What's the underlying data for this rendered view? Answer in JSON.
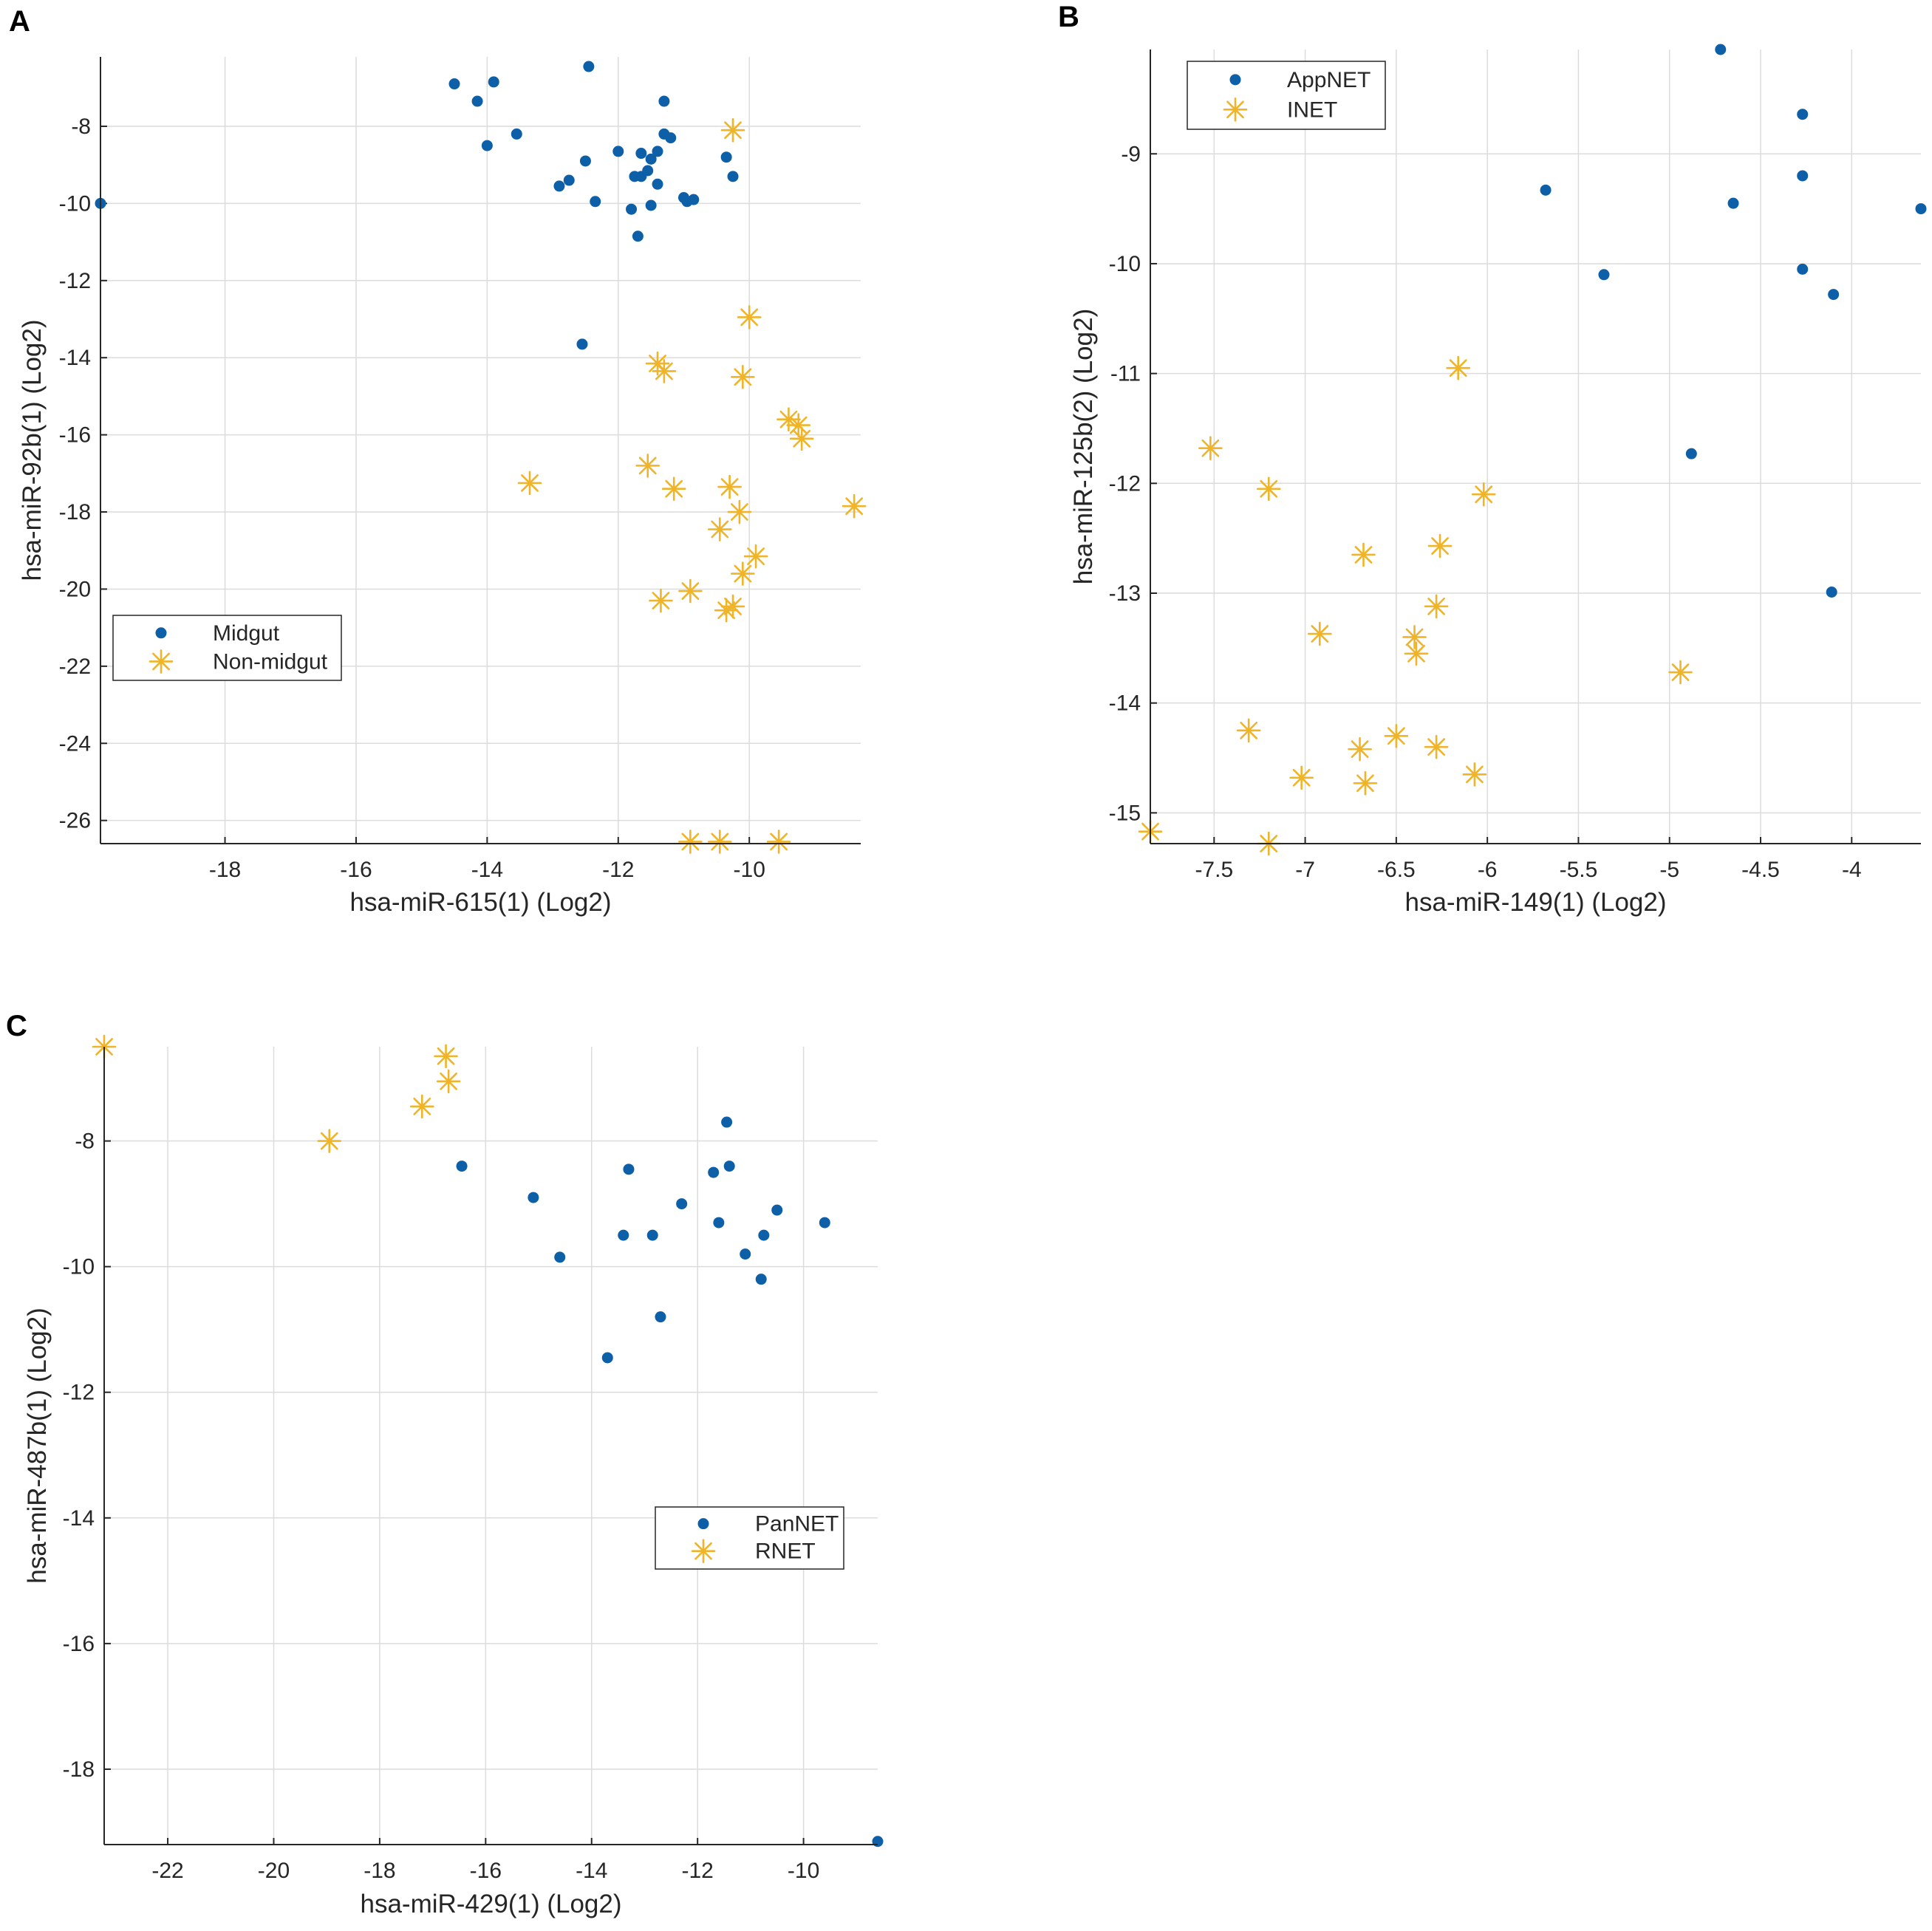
{
  "figure": {
    "colors": {
      "series_a": "#0d5fa8",
      "series_b": "#f0b428",
      "grid": "#dcdcdc",
      "axis": "#262626"
    }
  },
  "chart_data": [
    {
      "panel": "A",
      "type": "scatter",
      "xlabel": "hsa-miR-615(1)  (Log2)",
      "ylabel": "hsa-miR-92b(1)  (Log2)",
      "xlim": [
        -19.9,
        -8.3
      ],
      "ylim": [
        -26.6,
        -6.2
      ],
      "xticks": [
        -18,
        -16,
        -14,
        -12,
        -10
      ],
      "xtick_labels": [
        "-18",
        "-16",
        "-14",
        "-12",
        "-10"
      ],
      "yticks": [
        -26,
        -24,
        -22,
        -20,
        -18,
        -16,
        -14,
        -12,
        -10,
        -8
      ],
      "ytick_labels": [
        "-26",
        "-24",
        "-22",
        "-20",
        "-18",
        "-16",
        "-14",
        "-12",
        "-10",
        "-8"
      ],
      "legend_position": "lower-left",
      "series": [
        {
          "name": "Midgut",
          "marker": "dot",
          "x": [
            -19.9,
            -14.5,
            -14.15,
            -13.9,
            -14.0,
            -13.55,
            -12.45,
            -12.5,
            -12.0,
            -12.35,
            -12.9,
            -12.75,
            -11.65,
            -11.75,
            -11.65,
            -11.55,
            -11.5,
            -11.3,
            -11.3,
            -11.2,
            -11.4,
            -11.8,
            -11.5,
            -11.4,
            -11.7,
            -11.0,
            -10.95,
            -10.85,
            -10.35,
            -10.25,
            -12.55
          ],
          "y": [
            -10.0,
            -6.9,
            -7.35,
            -6.85,
            -8.5,
            -8.2,
            -6.45,
            -8.9,
            -8.65,
            -9.95,
            -9.55,
            -9.4,
            -8.7,
            -9.3,
            -9.3,
            -9.15,
            -8.85,
            -7.35,
            -8.2,
            -8.3,
            -9.5,
            -10.15,
            -10.05,
            -8.65,
            -10.85,
            -9.85,
            -9.95,
            -9.9,
            -8.8,
            -9.3,
            -13.65
          ]
        },
        {
          "name": "Non-midgut",
          "marker": "asterisk",
          "x": [
            -10.25,
            -10.0,
            -11.4,
            -11.3,
            -10.1,
            -9.4,
            -9.25,
            -9.2,
            -13.35,
            -11.55,
            -11.15,
            -10.3,
            -10.15,
            -10.45,
            -9.9,
            -10.1,
            -11.35,
            -10.9,
            -10.35,
            -10.25,
            -8.4,
            -10.9,
            -10.45,
            -9.55
          ],
          "y": [
            -8.1,
            -12.95,
            -14.15,
            -14.35,
            -14.5,
            -15.6,
            -15.75,
            -16.1,
            -17.25,
            -16.8,
            -17.4,
            -17.35,
            -18.0,
            -18.45,
            -19.15,
            -19.6,
            -20.3,
            -20.05,
            -20.55,
            -20.45,
            -17.85,
            -26.55,
            -26.55,
            -26.55
          ]
        }
      ]
    },
    {
      "panel": "B",
      "type": "scatter",
      "xlabel": "hsa-miR-149(1)  (Log2)",
      "ylabel": "hsa-miR-125b(2)  (Log2)",
      "xlim": [
        -7.85,
        -3.62
      ],
      "ylim": [
        -15.28,
        -8.05
      ],
      "xticks": [
        -7.5,
        -7,
        -6.5,
        -6,
        -5.5,
        -5,
        -4.5,
        -4
      ],
      "xtick_labels": [
        "-7.5",
        "-7",
        "-6.5",
        "-6",
        "-5.5",
        "-5",
        "-4.5",
        "-4"
      ],
      "yticks": [
        -15,
        -14,
        -13,
        -12,
        -11,
        -10,
        -9
      ],
      "ytick_labels": [
        "-15",
        "-14",
        "-13",
        "-12",
        "-11",
        "-10",
        "-9"
      ],
      "legend_position": "top-left",
      "series": [
        {
          "name": "AppNET",
          "marker": "dot",
          "x": [
            -4.72,
            -4.27,
            -4.27,
            -4.65,
            -5.68,
            -5.36,
            -4.27,
            -4.1,
            -3.62,
            -4.88,
            -4.11
          ],
          "y": [
            -8.05,
            -8.64,
            -9.2,
            -9.45,
            -9.33,
            -10.1,
            -10.05,
            -10.28,
            -9.5,
            -11.73,
            -12.99
          ]
        },
        {
          "name": "INET",
          "marker": "asterisk",
          "x": [
            -6.16,
            -7.52,
            -7.2,
            -6.02,
            -6.68,
            -6.26,
            -6.28,
            -6.92,
            -6.4,
            -6.39,
            -7.31,
            -6.5,
            -6.7,
            -6.28,
            -7.02,
            -6.67,
            -6.07,
            -4.94,
            -7.85,
            -7.2
          ],
          "y": [
            -10.95,
            -11.68,
            -12.05,
            -12.1,
            -12.65,
            -12.57,
            -13.12,
            -13.37,
            -13.4,
            -13.55,
            -14.25,
            -14.3,
            -14.42,
            -14.4,
            -14.68,
            -14.73,
            -14.65,
            -13.72,
            -15.17,
            -15.28
          ]
        }
      ]
    },
    {
      "panel": "C",
      "type": "scatter",
      "xlabel": "hsa-miR-429(1)  (Log2)",
      "ylabel": "hsa-miR-487b(1)  (Log2)",
      "xlim": [
        -23.2,
        -8.6
      ],
      "ylim": [
        -19.2,
        -6.5
      ],
      "xticks": [
        -22,
        -20,
        -18,
        -16,
        -14,
        -12,
        -10
      ],
      "xtick_labels": [
        "-22",
        "-20",
        "-18",
        "-16",
        "-14",
        "-12",
        "-10"
      ],
      "yticks": [
        -18,
        -16,
        -14,
        -12,
        -10,
        -8
      ],
      "ytick_labels": [
        "-18",
        "-16",
        "-14",
        "-12",
        "-10",
        "-8"
      ],
      "legend_position": "middle-right",
      "series": [
        {
          "name": "PanNET",
          "marker": "dot",
          "x": [
            -16.45,
            -15.1,
            -14.6,
            -13.7,
            -13.3,
            -13.4,
            -12.85,
            -12.7,
            -12.3,
            -11.7,
            -11.6,
            -11.45,
            -11.4,
            -11.1,
            -10.8,
            -10.75,
            -10.5,
            -9.6,
            -8.6
          ],
          "y": [
            -8.4,
            -8.9,
            -9.85,
            -11.45,
            -8.45,
            -9.5,
            -9.5,
            -10.8,
            -9.0,
            -8.5,
            -9.3,
            -7.7,
            -8.4,
            -9.8,
            -10.2,
            -9.5,
            -9.1,
            -9.3,
            -19.15
          ]
        },
        {
          "name": "RNET",
          "marker": "asterisk",
          "x": [
            -23.2,
            -16.75,
            -16.7,
            -17.2,
            -18.95
          ],
          "y": [
            -6.5,
            -6.65,
            -7.05,
            -7.45,
            -8.0
          ]
        }
      ]
    }
  ]
}
